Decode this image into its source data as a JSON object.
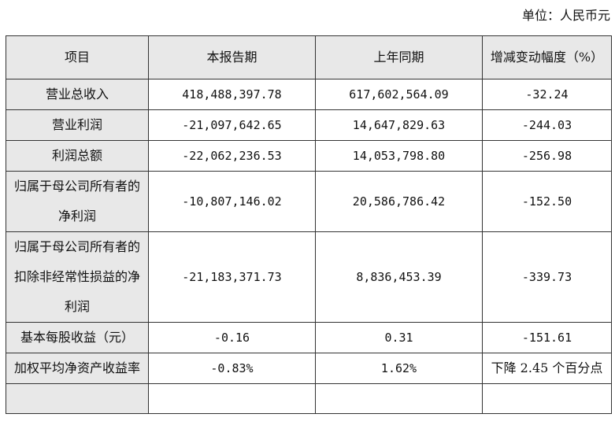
{
  "unit_label": "单位：人民币元",
  "headers": [
    "项目",
    "本报告期",
    "上年同期",
    "增减变动幅度（%）"
  ],
  "rows": [
    {
      "item": "营业总收入",
      "current": "418,488,397.78",
      "prior": "617,602,564.09",
      "change": "-32.24"
    },
    {
      "item": "营业利润",
      "current": "-21,097,642.65",
      "prior": "14,647,829.63",
      "change": "-244.03"
    },
    {
      "item": "利润总额",
      "current": "-22,062,236.53",
      "prior": "14,053,798.80",
      "change": "-256.98"
    },
    {
      "item": "归属于母公司所有者的净利润",
      "current": "-10,807,146.02",
      "prior": "20,586,786.42",
      "change": "-152.50"
    },
    {
      "item": "归属于母公司所有者的扣除非经常性损益的净利润",
      "current": "-21,183,371.73",
      "prior": "8,836,453.39",
      "change": "-339.73"
    },
    {
      "item": "基本每股收益（元）",
      "current": "-0.16",
      "prior": "0.31",
      "change": "-151.61"
    },
    {
      "item": "加权平均净资产收益率",
      "current": "-0.83%",
      "prior": "1.62%",
      "change": "下降 2.45 个百分点"
    }
  ]
}
